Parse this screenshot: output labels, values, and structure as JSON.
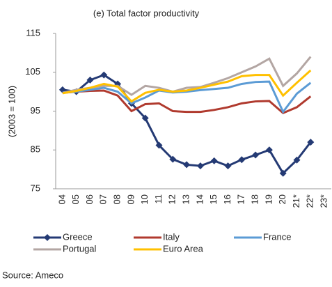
{
  "chart_data": {
    "type": "line",
    "title": "(e) Total factor productivity",
    "y_label": "(2003 = 100)",
    "source": "Source: Ameco",
    "categories": [
      "04",
      "05",
      "06",
      "07",
      "08",
      "09",
      "10",
      "11",
      "12",
      "13",
      "14",
      "15",
      "16",
      "17",
      "18",
      "19",
      "20",
      "21*",
      "22*",
      "23*"
    ],
    "ylim": [
      75,
      115
    ],
    "yticks": [
      75,
      85,
      95,
      105,
      115
    ],
    "legend": "bottom",
    "series": [
      {
        "name": "Greece",
        "color": "#243a74",
        "marker": "diamond",
        "values": [
          100.5,
          100,
          103,
          104.3,
          102,
          97,
          93.2,
          86.2,
          82.6,
          81.2,
          80.9,
          82.2,
          80.9,
          82.5,
          83.7,
          85,
          79,
          82.4,
          87,
          null
        ]
      },
      {
        "name": "Italy",
        "color": "#b03a2e",
        "values": [
          99.7,
          100,
          100.2,
          100.3,
          99,
          95,
          96.8,
          97,
          95,
          94.8,
          94.8,
          95.3,
          96,
          97,
          97.5,
          97.6,
          94.5,
          96,
          98.8,
          null
        ]
      },
      {
        "name": "France",
        "color": "#5b9bd5",
        "values": [
          99.8,
          100,
          100.5,
          101,
          100,
          97,
          98.5,
          100.3,
          99.8,
          100,
          100.4,
          100.7,
          101,
          102,
          102.5,
          102.6,
          94.8,
          99.5,
          102.3,
          null
        ]
      },
      {
        "name": "Portugal",
        "color": "#b3a6a3",
        "values": [
          99.7,
          100.5,
          101,
          101.5,
          101.5,
          99.2,
          101.5,
          101,
          100,
          101,
          101.2,
          102.3,
          103.5,
          105,
          106.5,
          108.5,
          101.5,
          104.7,
          109,
          null
        ]
      },
      {
        "name": "Euro Area",
        "color": "#ffc000",
        "values": [
          99.6,
          100.2,
          101,
          102,
          101.3,
          97.5,
          99.7,
          100.5,
          100,
          100.3,
          101,
          101.8,
          102.6,
          104,
          104.3,
          104.3,
          99,
          102.3,
          105.5,
          null
        ]
      }
    ]
  }
}
